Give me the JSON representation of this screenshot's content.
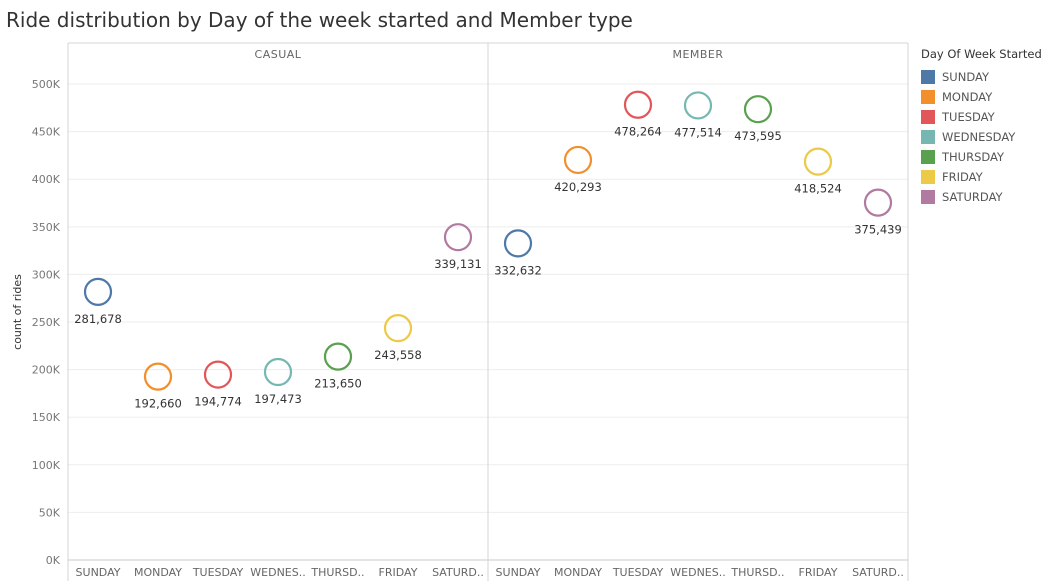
{
  "title": "Ride distribution by Day of the week started and Member type",
  "legend": {
    "title": "Day Of Week Started",
    "items": [
      {
        "label": "SUNDAY",
        "color": "#4e79a7"
      },
      {
        "label": "MONDAY",
        "color": "#f28e2b"
      },
      {
        "label": "TUESDAY",
        "color": "#e15759"
      },
      {
        "label": "WEDNESDAY",
        "color": "#76b7b2"
      },
      {
        "label": "THURSDAY",
        "color": "#59a14f"
      },
      {
        "label": "FRIDAY",
        "color": "#edc948"
      },
      {
        "label": "SATURDAY",
        "color": "#b07aa1"
      }
    ]
  },
  "chart_data": {
    "type": "scatter",
    "title": "Ride distribution by Day of the week started and Member type",
    "ylabel": "count of rides",
    "ylim": [
      0,
      520000
    ],
    "y_ticks": [
      {
        "value": 0,
        "label": "0K"
      },
      {
        "value": 50000,
        "label": "50K"
      },
      {
        "value": 100000,
        "label": "100K"
      },
      {
        "value": 150000,
        "label": "150K"
      },
      {
        "value": 200000,
        "label": "200K"
      },
      {
        "value": 250000,
        "label": "250K"
      },
      {
        "value": 300000,
        "label": "300K"
      },
      {
        "value": 350000,
        "label": "350K"
      },
      {
        "value": 400000,
        "label": "400K"
      },
      {
        "value": 450000,
        "label": "450K"
      },
      {
        "value": 500000,
        "label": "500K"
      }
    ],
    "categories": [
      "SUNDAY",
      "MONDAY",
      "TUESDAY",
      "WEDNES..",
      "THURSD..",
      "FRIDAY",
      "SATURD.."
    ],
    "colors": [
      "#4e79a7",
      "#f28e2b",
      "#e15759",
      "#76b7b2",
      "#59a14f",
      "#edc948",
      "#b07aa1"
    ],
    "panels": [
      {
        "name": "CASUAL",
        "values": [
          281678,
          192660,
          194774,
          197473,
          213650,
          243558,
          339131
        ],
        "labels": [
          "281,678",
          "192,660",
          "194,774",
          "197,473",
          "213,650",
          "243,558",
          "339,131"
        ]
      },
      {
        "name": "MEMBER",
        "values": [
          332632,
          420293,
          478264,
          477514,
          473595,
          418524,
          375439
        ],
        "labels": [
          "332,632",
          "420,293",
          "478,264",
          "477,514",
          "473,595",
          "418,524",
          "375,439"
        ]
      }
    ],
    "grid": true,
    "legend_position": "right"
  }
}
